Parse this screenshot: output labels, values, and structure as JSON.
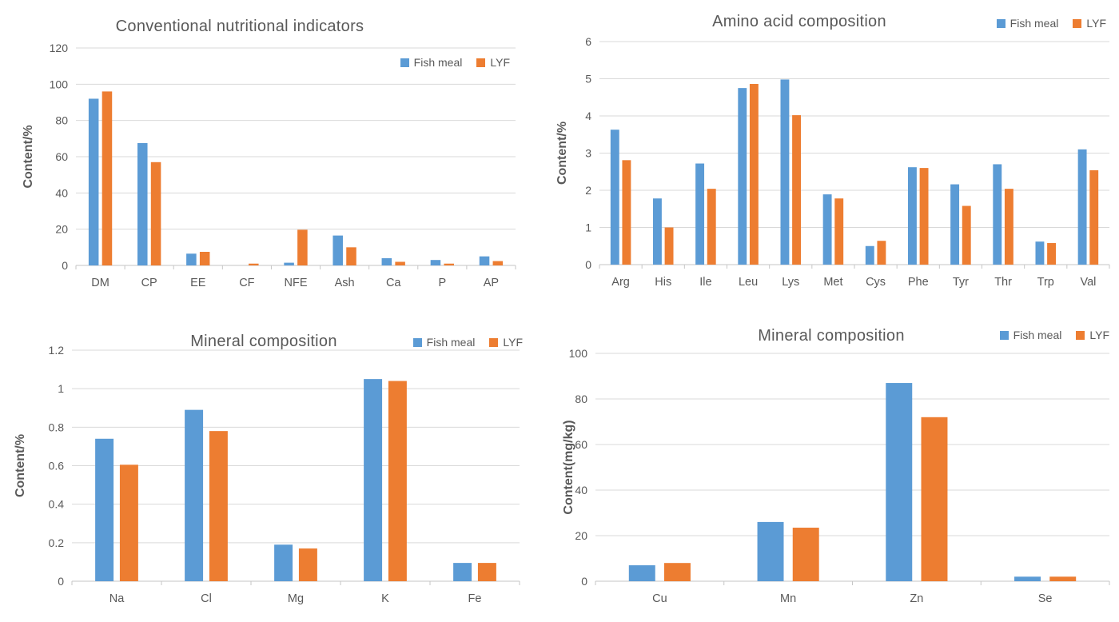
{
  "page": {
    "background": "#ffffff"
  },
  "colors": {
    "series_blue": "#5B9BD5",
    "series_orange": "#ED7D31",
    "text_gray": "#595959",
    "gridline": "#D9D9D9",
    "axis_line": "#C6C6C6"
  },
  "chart_data": [
    {
      "id": "conventional-nutritional-indicators",
      "type": "bar",
      "title": "Conventional nutritional indicators",
      "xlabel": "",
      "ylabel": "Content/%",
      "ylim": [
        0,
        120
      ],
      "ytick_step": 20,
      "grid": true,
      "legend_position": "inside-top-right",
      "categories": [
        "DM",
        "CP",
        "EE",
        "CF",
        "NFE",
        "Ash",
        "Ca",
        "P",
        "AP"
      ],
      "series": [
        {
          "name": "Fish meal",
          "color": "#5B9BD5",
          "values": [
            92,
            67.5,
            6.5,
            0,
            1.5,
            16.5,
            4,
            3,
            5
          ]
        },
        {
          "name": "LYF",
          "color": "#ED7D31",
          "values": [
            96,
            57,
            7.5,
            1,
            19.7,
            10,
            2,
            1,
            2.4
          ]
        }
      ]
    },
    {
      "id": "amino-acid-composition",
      "type": "bar",
      "title": "Amino acid composition",
      "xlabel": "",
      "ylabel": "Content/%",
      "ylim": [
        0,
        6
      ],
      "ytick_step": 1,
      "grid": true,
      "legend_position": "top-right-beside-title",
      "categories": [
        "Arg",
        "His",
        "Ile",
        "Leu",
        "Lys",
        "Met",
        "Cys",
        "Phe",
        "Tyr",
        "Thr",
        "Trp",
        "Val"
      ],
      "series": [
        {
          "name": "Fish meal",
          "color": "#5B9BD5",
          "values": [
            3.63,
            1.78,
            2.72,
            4.75,
            4.98,
            1.89,
            0.5,
            2.62,
            2.16,
            2.7,
            0.62,
            3.1
          ]
        },
        {
          "name": "LYF",
          "color": "#ED7D31",
          "values": [
            2.81,
            1.0,
            2.04,
            4.86,
            4.02,
            1.78,
            0.64,
            2.6,
            1.58,
            2.04,
            0.58,
            2.54
          ]
        }
      ]
    },
    {
      "id": "mineral-composition-percent",
      "type": "bar",
      "title": "Mineral composition",
      "xlabel": "",
      "ylabel": "Content/%",
      "ylim": [
        0,
        1.2
      ],
      "ytick_step": 0.2,
      "grid": true,
      "legend_position": "top-right-beside-title",
      "categories": [
        "Na",
        "Cl",
        "Mg",
        "K",
        "Fe"
      ],
      "series": [
        {
          "name": "Fish meal",
          "color": "#5B9BD5",
          "values": [
            0.74,
            0.89,
            0.19,
            1.05,
            0.095
          ]
        },
        {
          "name": "LYF",
          "color": "#ED7D31",
          "values": [
            0.605,
            0.78,
            0.17,
            1.04,
            0.095
          ]
        }
      ]
    },
    {
      "id": "mineral-composition-mgkg",
      "type": "bar",
      "title": "Mineral composition",
      "xlabel": "",
      "ylabel": "Content(mg/kg)",
      "ylim": [
        0,
        100
      ],
      "ytick_step": 20,
      "grid": true,
      "legend_position": "top-right-beside-title",
      "categories": [
        "Cu",
        "Mn",
        "Zn",
        "Se"
      ],
      "series": [
        {
          "name": "Fish meal",
          "color": "#5B9BD5",
          "values": [
            7,
            26,
            87,
            2
          ]
        },
        {
          "name": "LYF",
          "color": "#ED7D31",
          "values": [
            8,
            23.5,
            72,
            2
          ]
        }
      ]
    }
  ]
}
